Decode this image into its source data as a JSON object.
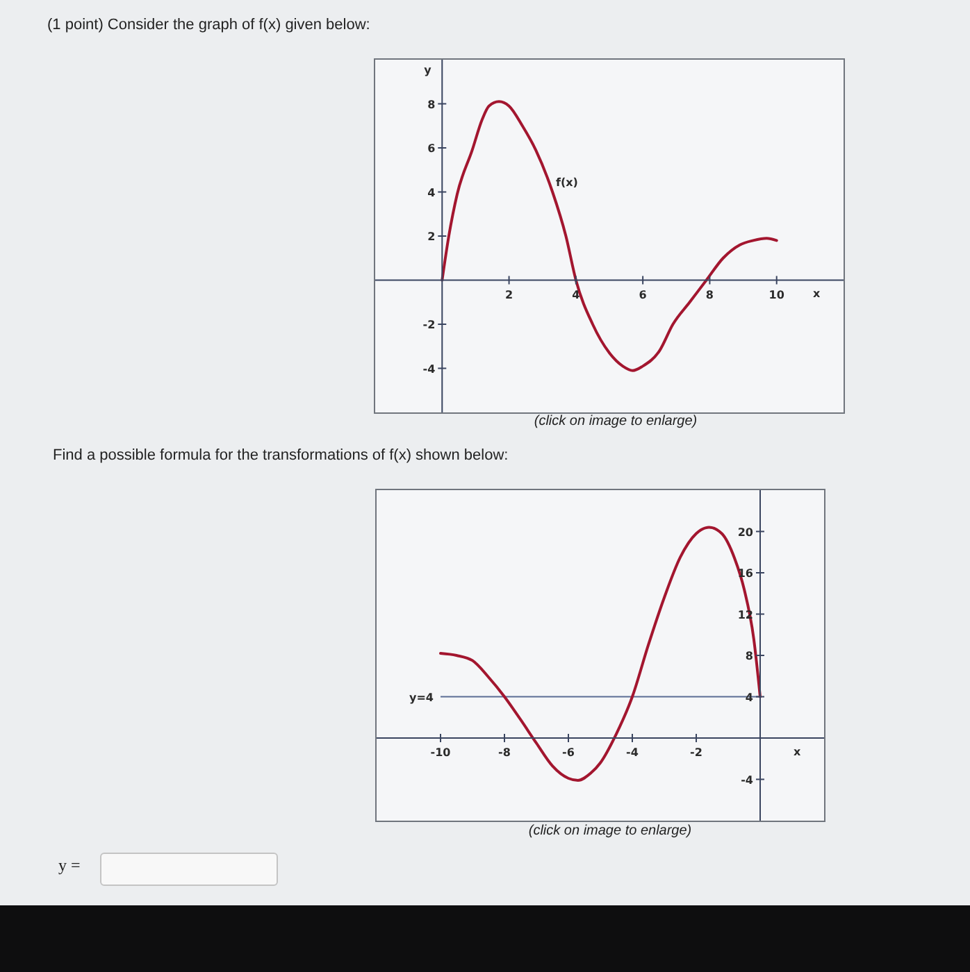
{
  "chart_data": [
    {
      "type": "line",
      "title": "(1 point) Consider the graph of f(x) given below:",
      "xlabel": "x",
      "ylabel": "y",
      "annotations": [
        "(click on image to enlarge)"
      ],
      "xlim": [
        -2,
        12
      ],
      "ylim": [
        -6,
        10
      ],
      "xticks": [
        2,
        4,
        6,
        8,
        10
      ],
      "yticks": [
        -4,
        -2,
        2,
        4,
        6,
        8
      ],
      "marker": "none",
      "series": [
        {
          "name": "f(x)",
          "color": "#a3162f",
          "x": [
            0,
            0.2,
            0.45,
            0.9,
            1.2,
            1.4,
            1.7,
            2.0,
            2.4,
            2.8,
            3.3,
            3.7,
            4.0,
            4.5,
            5.0,
            5.4,
            5.7,
            6.0,
            6.5,
            6.9,
            7.4,
            7.9,
            8.4,
            8.9,
            9.3,
            9.7,
            10
          ],
          "values": [
            0,
            2.0,
            3.9,
            5.9,
            7.3,
            7.9,
            8.1,
            7.9,
            7.0,
            5.9,
            4.0,
            2.0,
            0,
            -2.0,
            -3.3,
            -3.9,
            -4.1,
            -3.9,
            -3.2,
            -2.0,
            -1.0,
            0,
            1.0,
            1.6,
            1.8,
            1.9,
            1.8
          ]
        }
      ]
    },
    {
      "type": "line",
      "title": "Find a possible formula for the transformations of f(x) shown below:",
      "xlabel": "x",
      "annotations": [
        "(click on image to enlarge)",
        "y ="
      ],
      "xlim": [
        -12,
        2
      ],
      "ylim": [
        -8,
        24
      ],
      "xticks": [
        -10,
        -8,
        -6,
        -4,
        -2
      ],
      "yticks": [
        -4,
        4,
        8,
        12,
        16,
        20
      ],
      "marker": "none",
      "ref_lines": [
        {
          "axis": "y",
          "value": 4,
          "label": "y=4",
          "color": "#5a6c94"
        }
      ],
      "series": [
        {
          "color": "#a3162f",
          "x": [
            -10,
            -9.5,
            -9.0,
            -8.5,
            -8.0,
            -7.5,
            -7.0,
            -6.5,
            -6.0,
            -5.7,
            -5.3,
            -5.0,
            -4.5,
            -4.0,
            -3.5,
            -3.0,
            -2.5,
            -2.0,
            -1.6,
            -1.2,
            -0.8,
            -0.5,
            -0.2,
            0
          ],
          "values": [
            8.2,
            8.0,
            7.5,
            5.9,
            4.0,
            1.8,
            -0.5,
            -2.7,
            -3.9,
            -4.1,
            -3.4,
            -2.4,
            0.4,
            4.0,
            9.0,
            13.6,
            17.5,
            19.8,
            20.4,
            19.8,
            17.4,
            14.4,
            9.6,
            4.0
          ]
        }
      ]
    }
  ]
}
